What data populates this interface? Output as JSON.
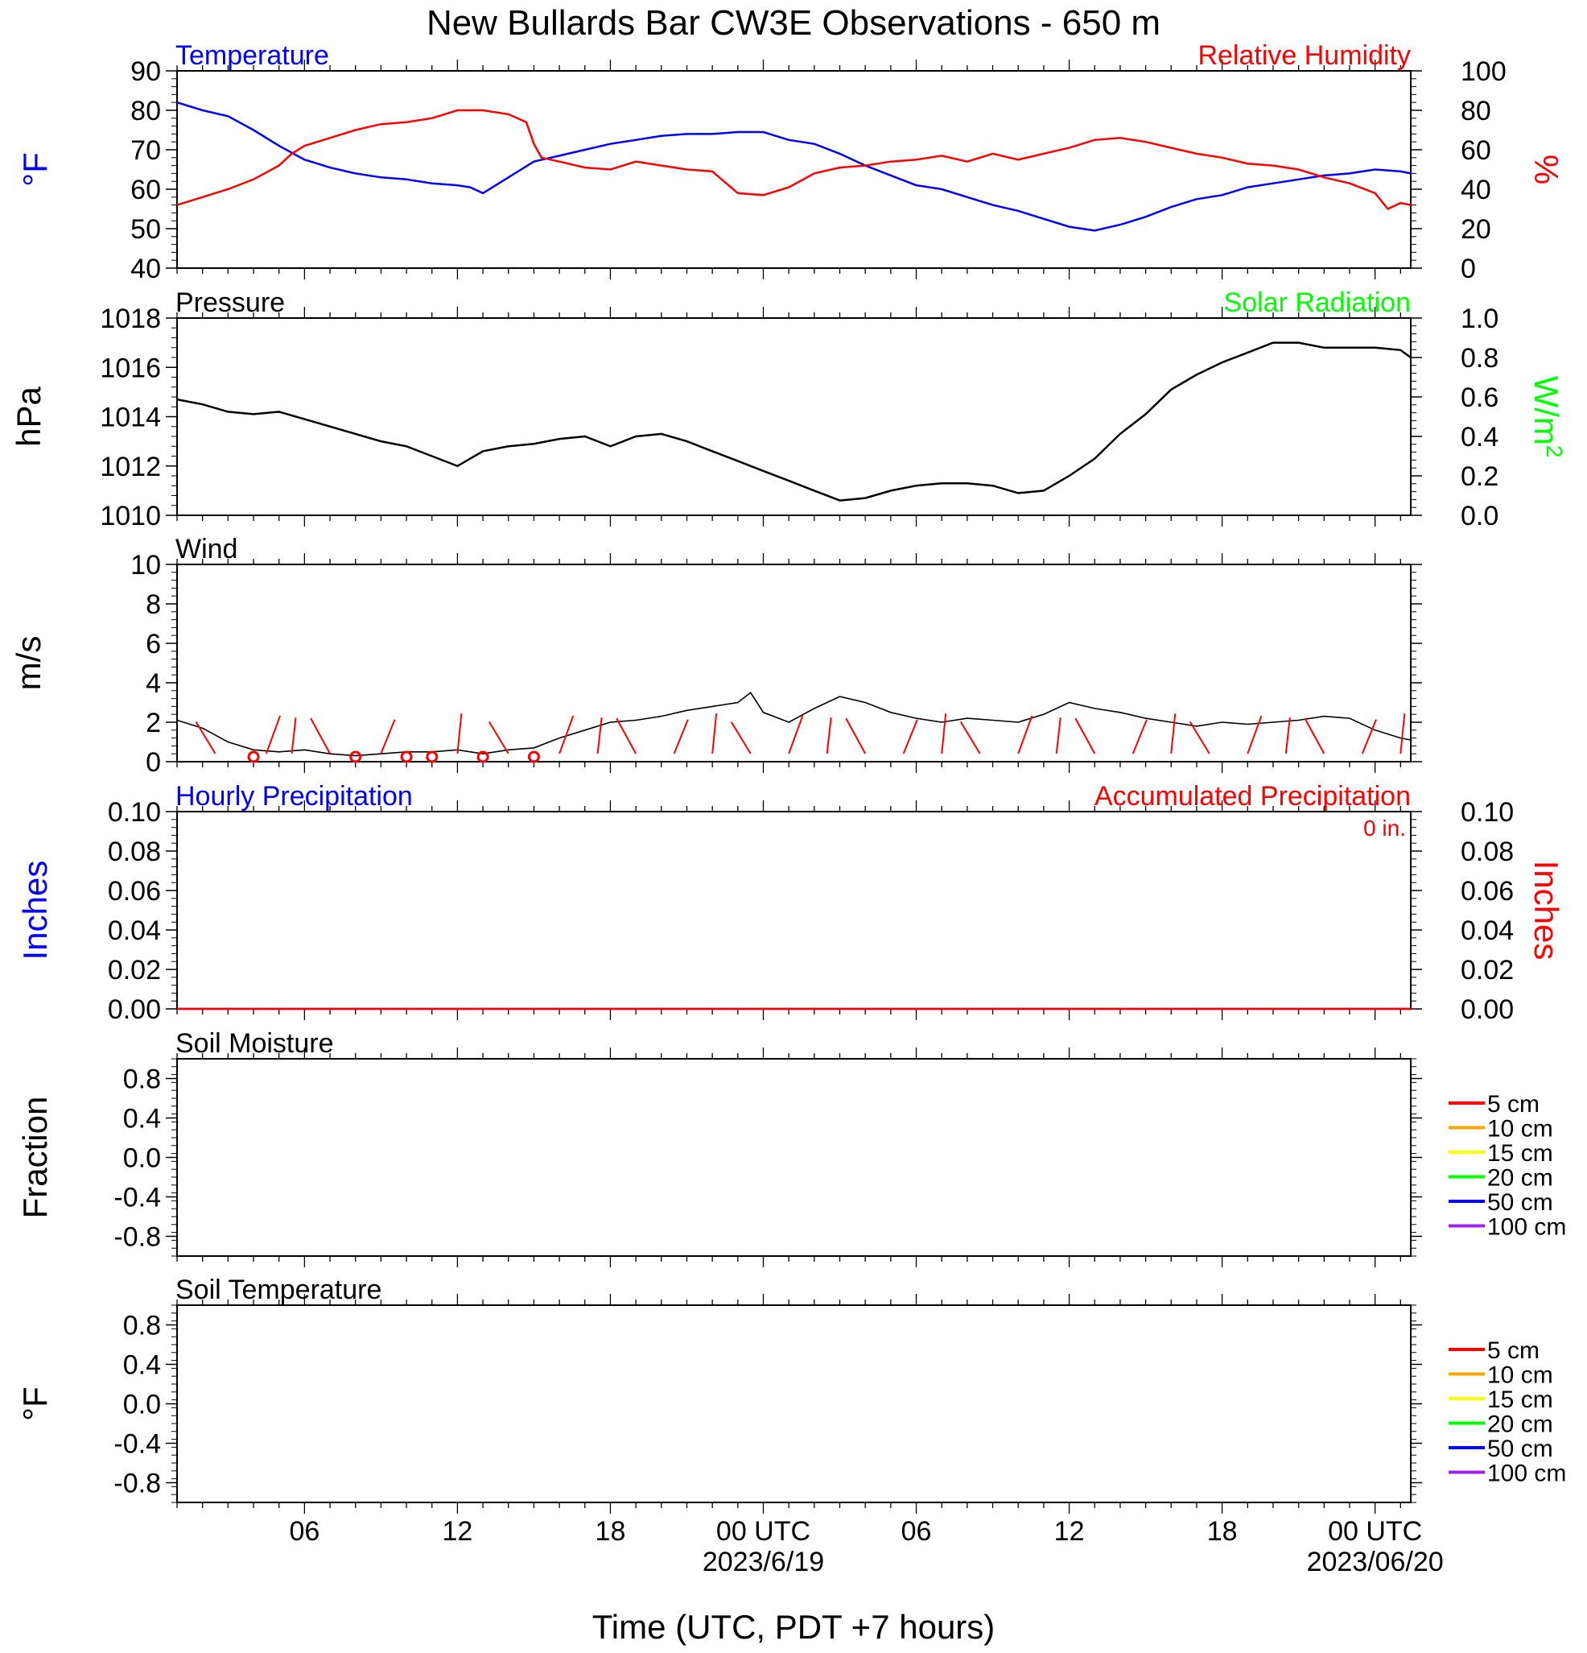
{
  "title": "New Bullards Bar CW3E Observations - 650 m",
  "colors": {
    "temperature": "#0000ff",
    "humidity": "#ff0000",
    "pressure": "#000000",
    "solar": "#00ff00",
    "wind": "#000000",
    "wind_barb": "#ff0000",
    "hourly_precip": "#0000ff",
    "accum_precip": "#ff0000",
    "soil_5cm": "#ff0000",
    "soil_10cm": "#ffa500",
    "soil_15cm": "#ffff00",
    "soil_20cm": "#00ff00",
    "soil_50cm": "#0000ff",
    "soil_100cm": "#a020f0"
  },
  "time_axis": {
    "tick_labels": [
      "06",
      "12",
      "18",
      "00 UTC",
      "06",
      "12",
      "18",
      "00 UTC"
    ],
    "tick_hours": [
      6,
      12,
      18,
      24,
      30,
      36,
      42,
      48
    ],
    "date_labels": [
      {
        "hour": 24,
        "text": "2023/6/19"
      },
      {
        "hour": 48,
        "text": "2023/06/20"
      }
    ],
    "range_hours": [
      1,
      49.4
    ],
    "xlabel": "Time (UTC, PDT +7 hours)"
  },
  "chart_data": [
    {
      "type": "line",
      "panel": "temperature_humidity",
      "left_title": "Temperature",
      "right_title": "Relative Humidity",
      "left_ylabel": "°F",
      "right_ylabel": "%",
      "left_ylim": [
        40,
        90
      ],
      "left_ticks": [
        "90",
        "80",
        "70",
        "60",
        "50",
        "40"
      ],
      "right_ylim": [
        0,
        100
      ],
      "right_ticks": [
        "100",
        "80",
        "60",
        "40",
        "20",
        "0"
      ],
      "series": [
        {
          "name": "Temperature",
          "axis": "left",
          "x": [
            1,
            2,
            3,
            4,
            5,
            6,
            7,
            8,
            9,
            10,
            11,
            12,
            12.5,
            13,
            14,
            15,
            16,
            17,
            18,
            19,
            20,
            21,
            22,
            23,
            24,
            25,
            26,
            27,
            28,
            29,
            30,
            31,
            32,
            33,
            34,
            35,
            36,
            37,
            38,
            39,
            40,
            41,
            42,
            43,
            44,
            45,
            46,
            47,
            48,
            49,
            49.4
          ],
          "y": [
            82,
            80,
            78.5,
            75,
            71,
            67.5,
            65.5,
            64,
            63,
            62.5,
            61.5,
            61,
            60.5,
            59,
            63,
            67,
            68.5,
            70,
            71.5,
            72.5,
            73.5,
            74,
            74,
            74.5,
            74.5,
            72.5,
            71.5,
            69,
            66,
            63.5,
            61,
            60,
            58,
            56,
            54.5,
            52.5,
            50.5,
            49.5,
            51,
            53,
            55.5,
            57.5,
            58.5,
            60.5,
            61.5,
            62.5,
            63.5,
            64,
            65,
            64.5,
            64
          ]
        },
        {
          "name": "Relative Humidity",
          "axis": "right",
          "x": [
            1,
            2,
            3,
            4,
            5,
            5.5,
            6,
            7,
            8,
            9,
            10,
            11,
            12,
            13,
            14,
            14.7,
            15,
            15.3,
            16,
            17,
            18,
            19,
            20,
            21,
            22,
            23,
            24,
            25,
            26,
            27,
            28,
            29,
            30,
            31,
            32,
            33,
            34,
            35,
            36,
            37,
            38,
            39,
            40,
            41,
            42,
            43,
            44,
            45,
            46,
            47,
            48,
            48.5,
            49,
            49.4
          ],
          "y": [
            32,
            36,
            40,
            45,
            52,
            58,
            62,
            66,
            70,
            73,
            74,
            76,
            80,
            80,
            78,
            74,
            63,
            56,
            54,
            51,
            50,
            54,
            52,
            50,
            49,
            38,
            37,
            41,
            48,
            51,
            52,
            54,
            55,
            57,
            54,
            58,
            55,
            58,
            61,
            65,
            66,
            64,
            61,
            58,
            56,
            53,
            52,
            50,
            46,
            43,
            38,
            30,
            33,
            32
          ]
        }
      ]
    },
    {
      "type": "line",
      "panel": "pressure_solar",
      "left_title": "Pressure",
      "right_title": "Solar Radiation",
      "left_ylabel": "hPa",
      "right_ylabel": "W/m",
      "right_ylabel_sup": "2",
      "left_ylim": [
        1010,
        1018
      ],
      "left_ticks": [
        "1018",
        "1016",
        "1014",
        "1012",
        "1010"
      ],
      "right_ylim": [
        0,
        1
      ],
      "right_ticks": [
        "1.0",
        "0.8",
        "0.6",
        "0.4",
        "0.2",
        "0.0"
      ],
      "series": [
        {
          "name": "Pressure",
          "axis": "left",
          "x": [
            1,
            2,
            3,
            4,
            5,
            6,
            7,
            8,
            9,
            10,
            11,
            12,
            13,
            14,
            15,
            16,
            17,
            18,
            19,
            20,
            21,
            22,
            23,
            24,
            25,
            26,
            27,
            28,
            29,
            30,
            31,
            32,
            33,
            34,
            35,
            36,
            37,
            38,
            39,
            40,
            41,
            42,
            43,
            44,
            45,
            46,
            47,
            48,
            49,
            49.4
          ],
          "y": [
            1014.7,
            1014.5,
            1014.2,
            1014.1,
            1014.2,
            1013.9,
            1013.6,
            1013.3,
            1013.0,
            1012.8,
            1012.4,
            1012.0,
            1012.6,
            1012.8,
            1012.9,
            1013.1,
            1013.2,
            1012.8,
            1013.2,
            1013.3,
            1013.0,
            1012.6,
            1012.2,
            1011.8,
            1011.4,
            1011.0,
            1010.6,
            1010.7,
            1011.0,
            1011.2,
            1011.3,
            1011.3,
            1011.2,
            1010.9,
            1011.0,
            1011.6,
            1012.3,
            1013.3,
            1014.1,
            1015.1,
            1015.7,
            1016.2,
            1016.6,
            1017.0,
            1017.0,
            1016.8,
            1016.8,
            1016.8,
            1016.7,
            1016.4
          ]
        }
      ]
    },
    {
      "type": "line",
      "panel": "wind",
      "left_title": "Wind",
      "left_ylabel": "m/s",
      "left_ylim": [
        0,
        10
      ],
      "left_ticks": [
        "10",
        "8",
        "6",
        "4",
        "2",
        "0"
      ],
      "series": [
        {
          "name": "Wind",
          "axis": "left",
          "x": [
            1,
            2,
            3,
            4,
            5,
            6,
            7,
            8,
            9,
            10,
            11,
            12,
            13,
            14,
            15,
            16,
            17,
            18,
            19,
            20,
            21,
            22,
            23,
            23.5,
            24,
            25,
            26,
            27,
            28,
            29,
            30,
            31,
            32,
            33,
            34,
            35,
            36,
            37,
            38,
            39,
            40,
            41,
            42,
            43,
            44,
            45,
            46,
            47,
            48,
            49,
            49.4
          ],
          "y": [
            2.1,
            1.7,
            1.0,
            0.6,
            0.5,
            0.6,
            0.4,
            0.3,
            0.4,
            0.5,
            0.5,
            0.6,
            0.4,
            0.6,
            0.7,
            1.2,
            1.6,
            2.0,
            2.1,
            2.3,
            2.6,
            2.8,
            3.0,
            3.5,
            2.5,
            2.0,
            2.7,
            3.3,
            3.0,
            2.5,
            2.2,
            2.0,
            2.2,
            2.1,
            2.0,
            2.4,
            3.0,
            2.7,
            2.5,
            2.2,
            2.0,
            1.8,
            2.0,
            1.9,
            2.0,
            2.1,
            2.3,
            2.2,
            1.6,
            1.2,
            1.1
          ]
        }
      ],
      "calm_markers_x": [
        4,
        8,
        10,
        11,
        13,
        15
      ],
      "barb_x": [
        2.5,
        4.5,
        5.5,
        7,
        9,
        12,
        14,
        16,
        17.5,
        19,
        20.5,
        22,
        23.5,
        25,
        26.5,
        28,
        29.5,
        31,
        32.5,
        34,
        35.5,
        37,
        38.5,
        40,
        41.5,
        43,
        44.5,
        46,
        47.5,
        49
      ]
    },
    {
      "type": "line",
      "panel": "precipitation",
      "left_title": "Hourly Precipitation",
      "right_title": "Accumulated Precipitation",
      "accum_total_label": "0 in.",
      "left_ylabel": "Inches",
      "right_ylabel": "Inches",
      "left_ylim": [
        0,
        0.1
      ],
      "left_ticks": [
        "0.10",
        "0.08",
        "0.06",
        "0.04",
        "0.02",
        "0.00"
      ],
      "right_ylim": [
        0,
        0.1
      ],
      "right_ticks": [
        "0.10",
        "0.08",
        "0.06",
        "0.04",
        "0.02",
        "0.00"
      ],
      "series": [
        {
          "name": "Hourly Precipitation",
          "axis": "left",
          "x": [
            1,
            49.4
          ],
          "y": [
            0,
            0
          ]
        },
        {
          "name": "Accumulated Precipitation",
          "axis": "right",
          "x": [
            1,
            49.4
          ],
          "y": [
            0,
            0
          ]
        }
      ]
    },
    {
      "type": "line",
      "panel": "soil_moisture",
      "left_title": "Soil Moisture",
      "left_ylabel": "Fraction",
      "left_ylim": [
        -1,
        1
      ],
      "left_ticks": [
        "0.8",
        "0.4",
        "0.0",
        "-0.4",
        "-0.8"
      ],
      "legend": [
        "5 cm",
        "10 cm",
        "15 cm",
        "20 cm",
        "50 cm",
        "100 cm"
      ],
      "series": []
    },
    {
      "type": "line",
      "panel": "soil_temperature",
      "left_title": "Soil Temperature",
      "left_ylabel": "°F",
      "left_ylim": [
        -1,
        1
      ],
      "left_ticks": [
        "0.8",
        "0.4",
        "0.0",
        "-0.4",
        "-0.8"
      ],
      "legend": [
        "5 cm",
        "10 cm",
        "15 cm",
        "20 cm",
        "50 cm",
        "100 cm"
      ],
      "series": []
    }
  ]
}
